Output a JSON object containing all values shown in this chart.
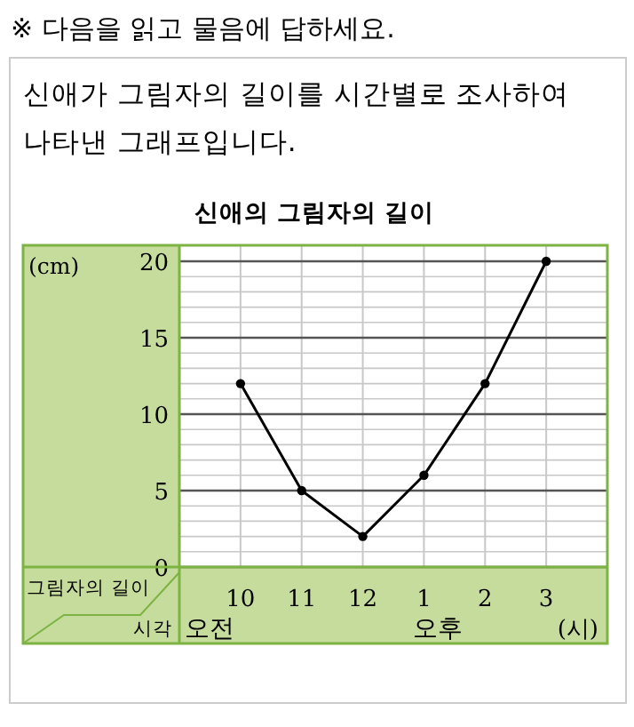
{
  "chart_data": {
    "type": "line",
    "title": "신애의 그림자의 길이",
    "subtitle": "신애가 그림자의 길이를 시간별로 조사하여 나타낸 그래프입니다.",
    "xlabel": "시각",
    "ylabel": "그림자의 길이",
    "annotations": [
      "※ 다음을 읽고 물음에 답하세요.",
      "(cm)",
      "오전",
      "오후",
      "(시)"
    ],
    "categories": [
      "10",
      "11",
      "12",
      "1",
      "2",
      "3"
    ],
    "series": [
      {
        "color": "#000000",
        "values": [
          12,
          5,
          2,
          6,
          12,
          20
        ]
      }
    ],
    "ylim": [
      0,
      20
    ],
    "yticks": [
      0,
      {
        "value": 1,
        "label": null
      },
      {
        "value": 2,
        "label": null
      },
      {
        "value": 3,
        "label": null
      },
      {
        "value": 4,
        "label": null
      },
      5,
      {
        "value": 6,
        "label": null
      },
      {
        "value": 7,
        "label": null
      },
      {
        "value": 8,
        "label": null
      },
      {
        "value": 9,
        "label": null
      },
      10,
      {
        "value": 11,
        "label": null
      },
      {
        "value": 12,
        "label": null
      },
      {
        "value": 13,
        "label": null
      },
      {
        "value": 14,
        "label": null
      },
      15,
      {
        "value": 16,
        "label": null
      },
      {
        "value": 17,
        "label": null
      },
      {
        "value": 18,
        "label": null
      },
      {
        "value": 19,
        "label": null
      },
      20
    ],
    "grid": true,
    "marker": "circle",
    "line_style": "solid"
  }
}
